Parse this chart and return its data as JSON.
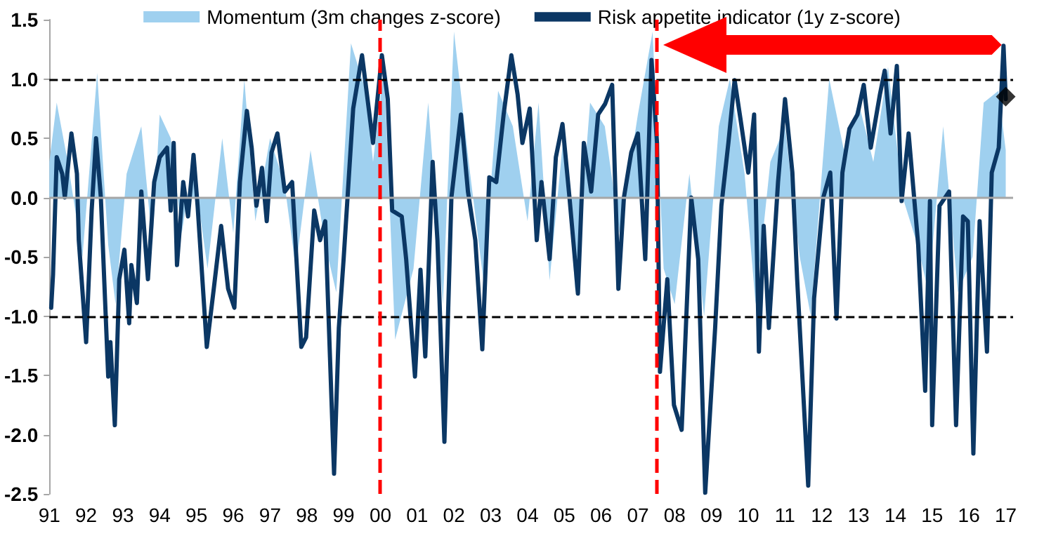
{
  "chart_data": {
    "type": "line",
    "legend": "top",
    "grid": false,
    "xlim": [
      1991,
      2017.2
    ],
    "xticks": [
      {
        "value": 1991,
        "label": "91"
      },
      {
        "value": 1992,
        "label": "92"
      },
      {
        "value": 1993,
        "label": "93"
      },
      {
        "value": 1994,
        "label": "94"
      },
      {
        "value": 1995,
        "label": "95"
      },
      {
        "value": 1996,
        "label": "96"
      },
      {
        "value": 1997,
        "label": "97"
      },
      {
        "value": 1998,
        "label": "98"
      },
      {
        "value": 1999,
        "label": "99"
      },
      {
        "value": 2000,
        "label": "00"
      },
      {
        "value": 2001,
        "label": "01"
      },
      {
        "value": 2002,
        "label": "02"
      },
      {
        "value": 2003,
        "label": "03"
      },
      {
        "value": 2004,
        "label": "04"
      },
      {
        "value": 2005,
        "label": "05"
      },
      {
        "value": 2006,
        "label": "06"
      },
      {
        "value": 2007,
        "label": "07"
      },
      {
        "value": 2008,
        "label": "08"
      },
      {
        "value": 2009,
        "label": "09"
      },
      {
        "value": 2010,
        "label": "10"
      },
      {
        "value": 2011,
        "label": "11"
      },
      {
        "value": 2012,
        "label": "12"
      },
      {
        "value": 2013,
        "label": "13"
      },
      {
        "value": 2014,
        "label": "14"
      },
      {
        "value": 2015,
        "label": "15"
      },
      {
        "value": 2016,
        "label": "16"
      },
      {
        "value": 2017,
        "label": "17"
      }
    ],
    "ylim": [
      -2.5,
      1.5
    ],
    "yticks": [
      {
        "value": -2.5,
        "label": "-2.5"
      },
      {
        "value": -2,
        "label": "-2.0"
      },
      {
        "value": -1.5,
        "label": "-1.5"
      },
      {
        "value": -1,
        "label": "-1.0"
      },
      {
        "value": -0.5,
        "label": "-0.5"
      },
      {
        "value": 0,
        "label": "0.0"
      },
      {
        "value": 0.5,
        "label": "0.5"
      },
      {
        "value": 1,
        "label": "1.0"
      },
      {
        "value": 1.5,
        "label": "1.5"
      }
    ],
    "ref_lines": [
      {
        "axis": "y",
        "value": 0,
        "color": "#a6a6a6",
        "line_style": "solid"
      },
      {
        "axis": "y",
        "value": 1,
        "color": "#000000",
        "line_style": "dashed"
      },
      {
        "axis": "y",
        "value": -1,
        "color": "#000000",
        "line_style": "dashed"
      },
      {
        "axis": "x",
        "value": 2000,
        "color": "#ff0000",
        "line_style": "dashed"
      },
      {
        "axis": "x",
        "value": 2007.5,
        "color": "#ff0000",
        "line_style": "dashed"
      }
    ],
    "series": [
      {
        "name": "Momentum (3m changes z-score)",
        "type": "area",
        "color": "#9fd0ef",
        "x": [
          1991.0,
          1991.2,
          1991.5,
          1991.9,
          1992.3,
          1992.6,
          1992.8,
          1993.1,
          1993.5,
          1993.8,
          1994.0,
          1994.3,
          1994.6,
          1994.9,
          1995.3,
          1995.7,
          1996.0,
          1996.3,
          1996.6,
          1997.0,
          1997.4,
          1997.7,
          1998.1,
          1998.5,
          1998.8,
          1999.2,
          1999.6,
          1999.8,
          2000.1,
          2000.4,
          2000.9,
          2001.3,
          2001.7,
          2002.0,
          2002.4,
          2002.8,
          2003.2,
          2003.6,
          2004.0,
          2004.3,
          2004.6,
          2005.0,
          2005.3,
          2005.7,
          2006.1,
          2006.5,
          2007.0,
          2007.4,
          2007.7,
          2008.0,
          2008.4,
          2008.8,
          2009.2,
          2009.5,
          2009.9,
          2010.2,
          2010.6,
          2011.0,
          2011.4,
          2011.7,
          2012.2,
          2012.6,
          2013.0,
          2013.4,
          2013.8,
          2014.2,
          2014.6,
          2014.9,
          2015.3,
          2015.7,
          2016.1,
          2016.4,
          2016.8,
          2017.0
        ],
        "values": [
          0.3,
          0.8,
          0.3,
          -0.5,
          1.05,
          -0.4,
          -0.9,
          0.2,
          0.6,
          -0.4,
          0.7,
          0.5,
          -0.3,
          0.3,
          -0.6,
          0.5,
          -0.3,
          1.0,
          -0.2,
          0.5,
          0.1,
          -0.6,
          0.4,
          -0.4,
          -0.8,
          1.3,
          0.9,
          0.3,
          1.1,
          -1.2,
          -0.6,
          0.8,
          -0.9,
          1.4,
          0.3,
          -0.7,
          0.9,
          0.6,
          -0.2,
          0.8,
          -0.7,
          0.6,
          -0.8,
          0.8,
          0.6,
          -0.3,
          0.7,
          1.4,
          -0.6,
          -0.9,
          0.2,
          -1.0,
          0.6,
          1.0,
          0.2,
          -0.9,
          0.3,
          0.6,
          -0.5,
          -1.0,
          1.0,
          0.4,
          0.8,
          0.3,
          1.1,
          0.0,
          -0.4,
          -0.8,
          0.6,
          -0.8,
          -0.5,
          0.8,
          0.9,
          0.4
        ]
      },
      {
        "name": "Risk appetite indicator (1y z-score)",
        "color": "#0b3764",
        "x": [
          1991.05,
          1991.1,
          1991.2,
          1991.35,
          1991.42,
          1991.6,
          1991.75,
          1991.8,
          1992.0,
          1992.15,
          1992.27,
          1992.4,
          1992.6,
          1992.66,
          1992.78,
          1992.9,
          1993.04,
          1993.17,
          1993.23,
          1993.38,
          1993.5,
          1993.68,
          1993.85,
          1994.0,
          1994.2,
          1994.3,
          1994.38,
          1994.47,
          1994.64,
          1994.77,
          1994.92,
          1995.03,
          1995.28,
          1995.47,
          1995.67,
          1995.86,
          1996.03,
          1996.18,
          1996.37,
          1996.5,
          1996.63,
          1996.78,
          1996.91,
          1997.04,
          1997.2,
          1997.4,
          1997.6,
          1997.85,
          1997.98,
          1998.2,
          1998.36,
          1998.5,
          1998.74,
          1998.87,
          1999.0,
          1999.26,
          1999.5,
          1999.8,
          2000.04,
          2000.2,
          2000.32,
          2000.58,
          2000.7,
          2000.94,
          2001.09,
          2001.22,
          2001.42,
          2001.55,
          2001.74,
          2001.93,
          2002.19,
          2002.38,
          2002.58,
          2002.77,
          2002.96,
          2003.15,
          2003.35,
          2003.56,
          2003.73,
          2003.86,
          2004.06,
          2004.25,
          2004.38,
          2004.6,
          2004.77,
          2004.95,
          2005.14,
          2005.37,
          2005.53,
          2005.73,
          2005.92,
          2006.11,
          2006.3,
          2006.47,
          2006.62,
          2006.82,
          2007.0,
          2007.2,
          2007.37,
          2007.52,
          2007.6,
          2007.8,
          2007.98,
          2008.19,
          2008.45,
          2008.64,
          2008.83,
          2009.1,
          2009.27,
          2009.46,
          2009.63,
          2009.79,
          2010.0,
          2010.16,
          2010.29,
          2010.42,
          2010.56,
          2010.81,
          2011.0,
          2011.2,
          2011.33,
          2011.63,
          2011.79,
          2012.04,
          2012.23,
          2012.4,
          2012.56,
          2012.75,
          2012.97,
          2013.14,
          2013.33,
          2013.58,
          2013.71,
          2013.87,
          2014.04,
          2014.17,
          2014.36,
          2014.62,
          2014.81,
          2014.94,
          2015.0,
          2015.2,
          2015.46,
          2015.65,
          2015.84,
          2015.97,
          2016.12,
          2016.29,
          2016.49,
          2016.62,
          2016.81,
          2016.94,
          2017.0
        ],
        "values": [
          -0.93,
          -0.65,
          0.34,
          0.2,
          0.0,
          0.54,
          0.2,
          -0.36,
          -1.22,
          -0.11,
          0.5,
          0.0,
          -1.51,
          -1.22,
          -1.92,
          -0.69,
          -0.44,
          -1.06,
          -0.57,
          -0.89,
          0.05,
          -0.69,
          0.13,
          0.34,
          0.42,
          -0.11,
          0.46,
          -0.57,
          0.13,
          -0.16,
          0.36,
          -0.07,
          -1.26,
          -0.77,
          -0.24,
          -0.77,
          -0.93,
          0.13,
          0.73,
          0.42,
          -0.07,
          0.25,
          -0.2,
          0.38,
          0.54,
          0.05,
          0.13,
          -1.26,
          -1.18,
          -0.11,
          -0.36,
          -0.2,
          -2.33,
          -1.1,
          -0.52,
          0.75,
          1.2,
          0.46,
          1.2,
          0.83,
          -0.11,
          -0.16,
          -0.52,
          -1.51,
          -0.61,
          -1.34,
          0.3,
          -0.36,
          -2.06,
          0.0,
          0.7,
          0.05,
          -0.36,
          -1.28,
          0.17,
          0.13,
          0.7,
          1.2,
          0.87,
          0.46,
          0.75,
          -0.36,
          0.13,
          -0.52,
          0.34,
          0.62,
          0.0,
          -0.81,
          0.46,
          0.05,
          0.7,
          0.79,
          0.95,
          -0.77,
          0.0,
          0.38,
          0.54,
          -0.52,
          1.16,
          0.46,
          -1.47,
          -0.69,
          -1.75,
          -1.96,
          0.0,
          -0.52,
          -2.49,
          -1.1,
          -0.07,
          0.46,
          0.99,
          0.66,
          0.21,
          0.7,
          -1.3,
          -0.24,
          -1.1,
          0.13,
          0.83,
          0.21,
          -0.69,
          -2.43,
          -0.85,
          0.0,
          0.21,
          -1.02,
          0.21,
          0.58,
          0.7,
          0.95,
          0.42,
          0.87,
          1.07,
          0.54,
          1.11,
          -0.03,
          0.54,
          -0.4,
          -1.63,
          -0.03,
          -1.92,
          -0.07,
          0.05,
          -1.92,
          -0.16,
          -0.2,
          -2.16,
          -0.2,
          -1.3,
          0.21,
          0.42,
          1.28,
          0.83
        ]
      },
      {
        "type": "scatter",
        "marker": "diamond",
        "color": "#000000",
        "x": [
          2017.0
        ],
        "values": [
          0.85
        ]
      }
    ]
  }
}
